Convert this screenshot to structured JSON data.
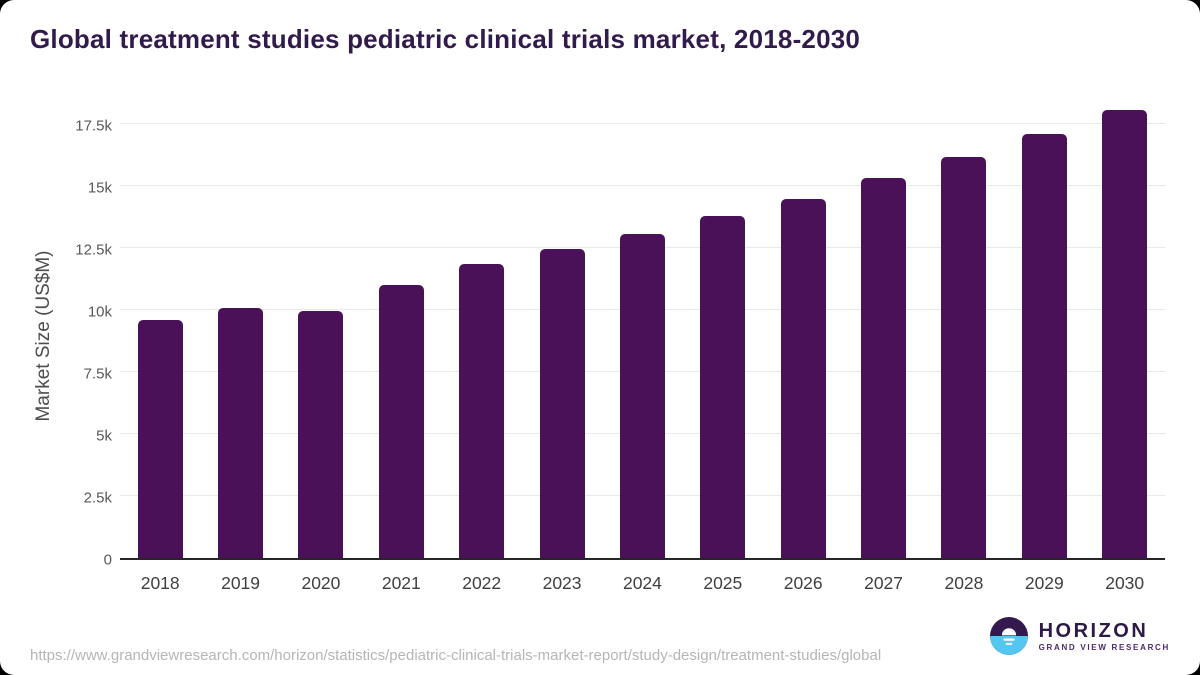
{
  "page": {
    "title": "Global treatment studies pediatric clinical trials market, 2018-2030"
  },
  "chart_data": {
    "type": "bar",
    "title": "Global treatment studies pediatric clinical trials market, 2018-2030",
    "xlabel": "",
    "ylabel": "Market Size (US$M)",
    "categories": [
      "2018",
      "2019",
      "2020",
      "2021",
      "2022",
      "2023",
      "2024",
      "2025",
      "2026",
      "2027",
      "2028",
      "2029",
      "2030"
    ],
    "values": [
      9600,
      10080,
      9950,
      11020,
      11850,
      12460,
      13070,
      13790,
      14480,
      15310,
      16150,
      17080,
      18050
    ],
    "unit": "US$M",
    "ylim": [
      0,
      18100
    ],
    "yticks": [
      0,
      2500,
      5000,
      7500,
      10000,
      12500,
      15000,
      17500
    ],
    "ytick_labels": [
      "0",
      "2.5k",
      "5k",
      "7.5k",
      "10k",
      "12.5k",
      "15k",
      "17.5k"
    ],
    "grid": "horizontal",
    "legend": "none",
    "bar_color": "#4a1159"
  },
  "footer": {
    "source_url": "https://www.grandviewresearch.com/horizon/statistics/pediatric-clinical-trials-market-report/study-design/treatment-studies/global",
    "logo": {
      "title": "HORIZON",
      "subtitle": "GRAND VIEW RESEARCH"
    }
  },
  "colors": {
    "background": "#ffffff",
    "bar": "#4a1159",
    "title": "#301b4b",
    "axis_label": "#4d4d4d",
    "tick_label": "#595959",
    "x_tick_label": "#3f3f3f",
    "gridline": "#e9e9e9",
    "axis_line": "#262626",
    "url_text": "#b5b5b5",
    "logo_purple": "#33194d",
    "logo_blue": "#54c6f0",
    "logo_text": "#2e1a47",
    "logo_subtext": "#4b2a6e"
  }
}
